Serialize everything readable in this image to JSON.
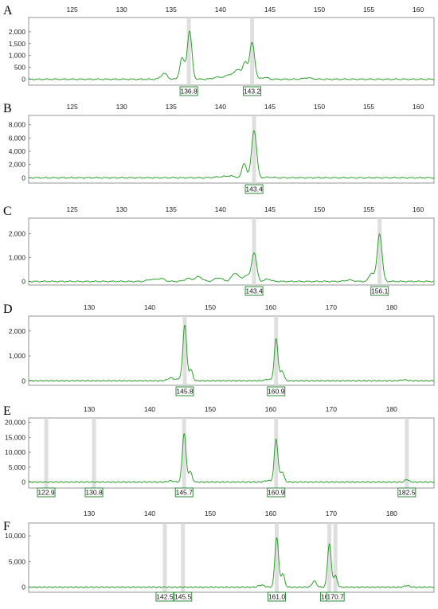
{
  "colors": {
    "trace": "#2ca02c",
    "allele_bar": "#d9d9d9",
    "call_border": "#2e8b3a",
    "frame": "#7a7a7a"
  },
  "chart_data": [
    {
      "type": "line",
      "panel_label": "A",
      "x_ticks": [
        125,
        130,
        135,
        140,
        145,
        150,
        155,
        160
      ],
      "xlim": [
        120.6,
        161.6
      ],
      "y_ticks": [
        {
          "value": 0,
          "label": "0"
        },
        {
          "value": 500,
          "label": "500"
        },
        {
          "value": 1000,
          "label": "1,000"
        },
        {
          "value": 1500,
          "label": "1,500"
        },
        {
          "value": 2000,
          "label": "2,000"
        }
      ],
      "ylim": [
        -250,
        2600
      ],
      "baseline": 0,
      "peaks": [
        {
          "x": 134.3,
          "h": 250,
          "w": 0.3
        },
        {
          "x": 136.1,
          "h": 850,
          "w": 0.22
        },
        {
          "x": 136.6,
          "h": 350,
          "w": 0.25
        },
        {
          "x": 136.9,
          "h": 1850,
          "w": 0.22
        },
        {
          "x": 139.8,
          "h": 90,
          "w": 0.5
        },
        {
          "x": 141.0,
          "h": 200,
          "w": 0.4
        },
        {
          "x": 141.8,
          "h": 400,
          "w": 0.3
        },
        {
          "x": 142.5,
          "h": 700,
          "w": 0.22
        },
        {
          "x": 143.2,
          "h": 1550,
          "w": 0.25
        },
        {
          "x": 144.5,
          "h": 80,
          "w": 0.3
        },
        {
          "x": 148.8,
          "h": 60,
          "w": 0.4
        }
      ],
      "allele_calls": [
        {
          "x": 136.8,
          "label": "136.8"
        },
        {
          "x": 143.2,
          "label": "143.2"
        }
      ]
    },
    {
      "type": "line",
      "panel_label": "B",
      "x_ticks": [
        125,
        130,
        135,
        140,
        145,
        150,
        155,
        160
      ],
      "xlim": [
        120.6,
        161.6
      ],
      "y_ticks": [
        {
          "value": 0,
          "label": "0"
        },
        {
          "value": 2000,
          "label": "2,000"
        },
        {
          "value": 4000,
          "label": "4,000"
        },
        {
          "value": 6000,
          "label": "6,000"
        },
        {
          "value": 8000,
          "label": "8,000"
        }
      ],
      "ylim": [
        -800,
        9400
      ],
      "baseline": 0,
      "peaks": [
        {
          "x": 140.0,
          "h": 150,
          "w": 0.6
        },
        {
          "x": 141.0,
          "h": 250,
          "w": 0.4
        },
        {
          "x": 142.4,
          "h": 2200,
          "w": 0.22
        },
        {
          "x": 143.4,
          "h": 7200,
          "w": 0.25
        },
        {
          "x": 145.0,
          "h": 80,
          "w": 0.4
        }
      ],
      "allele_calls": [
        {
          "x": 143.4,
          "label": "143.4"
        }
      ]
    },
    {
      "type": "line",
      "panel_label": "C",
      "x_ticks": [
        125,
        130,
        135,
        140,
        145,
        150,
        155,
        160
      ],
      "xlim": [
        120.6,
        161.6
      ],
      "y_ticks": [
        {
          "value": 0,
          "label": "0"
        },
        {
          "value": 1000,
          "label": "1,000"
        },
        {
          "value": 2000,
          "label": "2,000"
        }
      ],
      "ylim": [
        -150,
        2650
      ],
      "baseline": 0,
      "peaks": [
        {
          "x": 133.0,
          "h": 80,
          "w": 0.4
        },
        {
          "x": 134.0,
          "h": 120,
          "w": 0.35
        },
        {
          "x": 136.7,
          "h": 120,
          "w": 0.35
        },
        {
          "x": 137.8,
          "h": 200,
          "w": 0.35
        },
        {
          "x": 139.8,
          "h": 150,
          "w": 0.4
        },
        {
          "x": 141.5,
          "h": 350,
          "w": 0.35
        },
        {
          "x": 142.6,
          "h": 250,
          "w": 0.3
        },
        {
          "x": 143.4,
          "h": 1200,
          "w": 0.25
        },
        {
          "x": 144.8,
          "h": 100,
          "w": 0.3
        },
        {
          "x": 153.0,
          "h": 60,
          "w": 0.4
        },
        {
          "x": 155.3,
          "h": 350,
          "w": 0.25
        },
        {
          "x": 156.1,
          "h": 2000,
          "w": 0.24
        }
      ],
      "allele_calls": [
        {
          "x": 143.4,
          "label": "143.4"
        },
        {
          "x": 156.1,
          "label": "156.1"
        }
      ]
    },
    {
      "type": "line",
      "panel_label": "D",
      "x_ticks": [
        130,
        140,
        150,
        160,
        170,
        180
      ],
      "xlim": [
        120.0,
        187.0
      ],
      "y_ticks": [
        {
          "value": 0,
          "label": "0"
        },
        {
          "value": 1000,
          "label": "1,000"
        },
        {
          "value": 2000,
          "label": "2,000"
        }
      ],
      "ylim": [
        -180,
        2600
      ],
      "baseline": 0,
      "peaks": [
        {
          "x": 143.5,
          "h": 120,
          "w": 0.5
        },
        {
          "x": 145.0,
          "h": 100,
          "w": 0.4
        },
        {
          "x": 145.8,
          "h": 2250,
          "w": 0.3
        },
        {
          "x": 146.8,
          "h": 450,
          "w": 0.3
        },
        {
          "x": 159.5,
          "h": 60,
          "w": 0.5
        },
        {
          "x": 160.9,
          "h": 1700,
          "w": 0.3
        },
        {
          "x": 161.9,
          "h": 400,
          "w": 0.3
        },
        {
          "x": 182.0,
          "h": 40,
          "w": 0.5
        }
      ],
      "allele_calls": [
        {
          "x": 145.8,
          "label": "145.8"
        },
        {
          "x": 160.9,
          "label": "160.9"
        }
      ]
    },
    {
      "type": "line",
      "panel_label": "E",
      "x_ticks": [
        130,
        140,
        150,
        160,
        170,
        180
      ],
      "xlim": [
        120.0,
        187.0
      ],
      "y_ticks": [
        {
          "value": 0,
          "label": "0"
        },
        {
          "value": 5000,
          "label": "5,000"
        },
        {
          "value": 10000,
          "label": "10,000"
        },
        {
          "value": 15000,
          "label": "15,000"
        },
        {
          "value": 20000,
          "label": "20,000"
        }
      ],
      "ylim": [
        -2000,
        21500
      ],
      "baseline": 0,
      "peaks": [
        {
          "x": 143.5,
          "h": 400,
          "w": 0.5
        },
        {
          "x": 145.7,
          "h": 16500,
          "w": 0.3
        },
        {
          "x": 146.7,
          "h": 3500,
          "w": 0.3
        },
        {
          "x": 159.5,
          "h": 500,
          "w": 0.5
        },
        {
          "x": 160.9,
          "h": 14500,
          "w": 0.3
        },
        {
          "x": 161.9,
          "h": 3500,
          "w": 0.3
        },
        {
          "x": 182.5,
          "h": 900,
          "w": 0.3
        }
      ],
      "allele_calls": [
        {
          "x": 122.9,
          "label": "122.9"
        },
        {
          "x": 130.8,
          "label": "130.8"
        },
        {
          "x": 145.7,
          "label": "145.7"
        },
        {
          "x": 160.9,
          "label": "160.9"
        },
        {
          "x": 182.5,
          "label": "182.5"
        }
      ]
    },
    {
      "type": "line",
      "panel_label": "F",
      "x_ticks": [
        130,
        140,
        150,
        160,
        170,
        180
      ],
      "xlim": [
        120.0,
        187.0
      ],
      "y_ticks": [
        {
          "value": 0,
          "label": "0"
        },
        {
          "value": 5000,
          "label": "5,000"
        },
        {
          "value": 10000,
          "label": "10,000"
        }
      ],
      "ylim": [
        -1000,
        12500
      ],
      "baseline": 0,
      "peaks": [
        {
          "x": 158.5,
          "h": 400,
          "w": 0.5
        },
        {
          "x": 161.0,
          "h": 9800,
          "w": 0.3
        },
        {
          "x": 162.0,
          "h": 2600,
          "w": 0.3
        },
        {
          "x": 167.2,
          "h": 1200,
          "w": 0.35
        },
        {
          "x": 169.7,
          "h": 8500,
          "w": 0.3
        },
        {
          "x": 170.7,
          "h": 2200,
          "w": 0.3
        },
        {
          "x": 182.5,
          "h": 300,
          "w": 0.4
        }
      ],
      "allele_calls": [
        {
          "x": 142.5,
          "label": "142.5"
        },
        {
          "x": 145.5,
          "label": "145.5"
        },
        {
          "x": 161.0,
          "label": "161.0"
        },
        {
          "x": 169.7,
          "label": "169.7"
        },
        {
          "x": 170.7,
          "label": "170.7"
        }
      ]
    }
  ]
}
